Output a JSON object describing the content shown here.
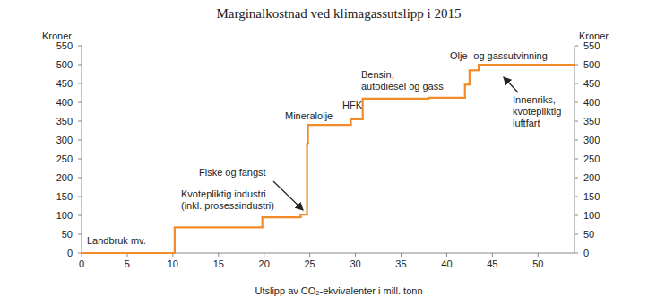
{
  "chart_data": {
    "type": "step",
    "title": "Marginalkostnad ved klimagassutslipp i 2015",
    "x_label": "Utslipp av CO₂-ekvivalenter i mill. tonn",
    "y_label": "Kroner",
    "y2_label": "Kroner",
    "x": [
      0,
      10.2,
      19.8,
      24,
      24.7,
      24.8,
      29.5,
      30.8,
      38,
      42,
      42.5,
      43.5
    ],
    "values": [
      0,
      68,
      95,
      102,
      290,
      340,
      355,
      410,
      412,
      447,
      485,
      500
    ],
    "color": "#f28c28",
    "xlim": [
      0,
      54
    ],
    "xticks": [
      0,
      5,
      10,
      15,
      20,
      25,
      30,
      35,
      40,
      45,
      50
    ],
    "ylim": [
      0,
      550
    ],
    "yticks": [
      0,
      50,
      100,
      150,
      200,
      250,
      300,
      350,
      400,
      450,
      500,
      550
    ],
    "y2lim": [
      0,
      550
    ],
    "y2ticks": [
      0,
      50,
      100,
      150,
      200,
      250,
      300,
      350,
      400,
      450,
      500,
      550
    ],
    "grid": false,
    "annotations": [
      {
        "text": [
          "Landbruk mv."
        ]
      },
      {
        "text": [
          "Kvotepliktig industri",
          "(inkl. prosessindustri)"
        ]
      },
      {
        "text": [
          "Fiske og fangst"
        ]
      },
      {
        "text": [
          "Mineralolje"
        ]
      },
      {
        "text": [
          "HFK"
        ]
      },
      {
        "text": [
          "Bensin,",
          "autodiesel og gass"
        ]
      },
      {
        "text": [
          "Olje- og gassutvinning"
        ]
      },
      {
        "text": [
          "Innenriks,",
          "kvotepliktig",
          "luftfart"
        ]
      }
    ]
  }
}
